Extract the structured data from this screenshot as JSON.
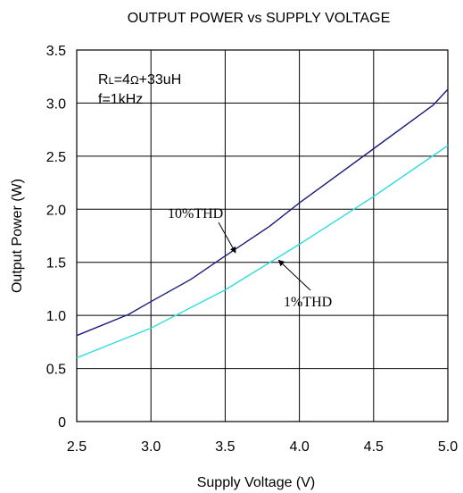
{
  "chart_data": {
    "type": "line",
    "title": "OUTPUT POWER vs SUPPLY VOLTAGE",
    "xlabel": "Supply Voltage (V)",
    "ylabel": "Output Power (W)",
    "xlim": [
      2.5,
      5.0
    ],
    "ylim": [
      0,
      3.5
    ],
    "grid": true,
    "x_ticks": [
      "2.5",
      "3.0",
      "3.5",
      "4.0",
      "4.5",
      "5.0"
    ],
    "y_ticks": [
      "0",
      "0.5",
      "1.0",
      "1.5",
      "2.0",
      "2.5",
      "3.0",
      "3.5"
    ],
    "conditions": {
      "line1_main": "R",
      "line1_sub": "L",
      "line1_rest": "=4",
      "line1_omega": "Ω",
      "line1_end": "+33uH",
      "line2": "f=1kHz"
    },
    "series": [
      {
        "name": "10%THD",
        "color": "#1a1a7a",
        "x": [
          2.5,
          2.85,
          3.0,
          3.27,
          3.5,
          3.8,
          4.0,
          4.5,
          4.9,
          5.0
        ],
        "y": [
          0.81,
          1.01,
          1.13,
          1.34,
          1.56,
          1.84,
          2.06,
          2.57,
          2.98,
          3.13
        ]
      },
      {
        "name": "1%THD",
        "color": "#33dddd",
        "x": [
          2.5,
          3.0,
          3.5,
          4.0,
          4.5,
          5.0
        ],
        "y": [
          0.6,
          0.88,
          1.24,
          1.67,
          2.12,
          2.6
        ]
      }
    ],
    "annotations": [
      {
        "text": "10%THD",
        "series": 0,
        "arrow_to": [
          3.57,
          1.59
        ]
      },
      {
        "text": "1%THD",
        "series": 1,
        "arrow_to": [
          3.86,
          1.52
        ]
      }
    ]
  }
}
